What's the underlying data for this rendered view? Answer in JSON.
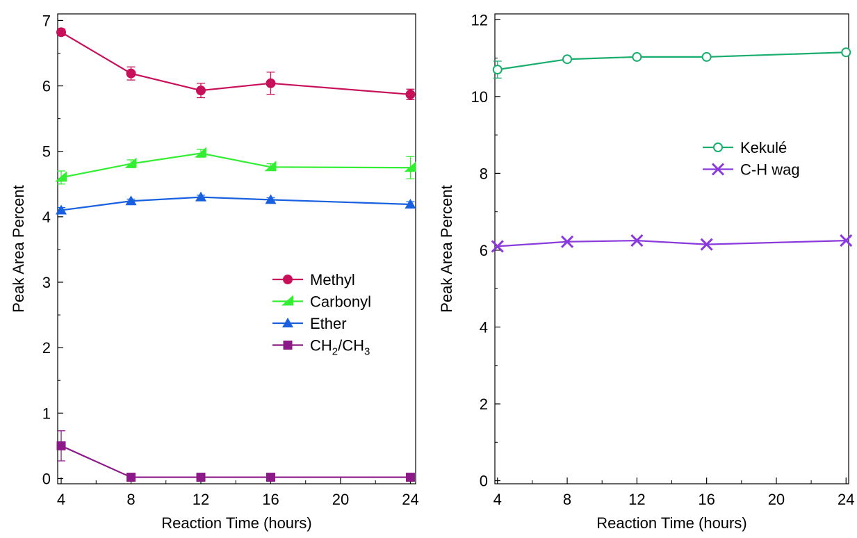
{
  "chart_data": [
    {
      "type": "line",
      "xlabel": "Reaction Time (hours)",
      "ylabel": "Peak Area Percent",
      "xlim": [
        3.8,
        24.3
      ],
      "ylim": [
        -0.08,
        7.1
      ],
      "x_ticks": [
        4,
        8,
        12,
        16,
        20,
        24
      ],
      "y_ticks": [
        0,
        1,
        2,
        3,
        4,
        5,
        6,
        7
      ],
      "grid": false,
      "legend_position": "center-right",
      "x": [
        4,
        8,
        12,
        16,
        24
      ],
      "series": [
        {
          "name": "Methyl",
          "marker": "circle",
          "color": "#C8105A",
          "values": [
            6.82,
            6.19,
            5.93,
            6.04,
            5.87
          ],
          "errors": [
            0.05,
            0.1,
            0.11,
            0.17,
            0.08
          ]
        },
        {
          "name": "Carbonyl",
          "marker": "triangle-left",
          "color": "#33EE33",
          "values": [
            4.6,
            4.81,
            4.97,
            4.76,
            4.75
          ],
          "errors": [
            0.1,
            0.06,
            0.06,
            0.05,
            0.17
          ]
        },
        {
          "name": "Ether",
          "marker": "triangle-up",
          "color": "#1860E0",
          "values": [
            4.1,
            4.24,
            4.3,
            4.26,
            4.19
          ],
          "errors": [
            0.04,
            0.03,
            0.03,
            0.03,
            0.04
          ]
        },
        {
          "name": "CH2/CH3",
          "name_parts": {
            "p1": "CH",
            "s1": "2",
            "p2": "/CH",
            "s2": "3"
          },
          "marker": "square",
          "color": "#8B1A88",
          "values": [
            0.5,
            0.02,
            0.02,
            0.02,
            0.02
          ],
          "errors": [
            0.23,
            0.0,
            0.0,
            0.0,
            0.0
          ]
        }
      ]
    },
    {
      "type": "line",
      "xlabel": "Reaction Time (hours)",
      "ylabel": "Peak Area Percent",
      "xlim": [
        3.85,
        24.15
      ],
      "ylim": [
        -0.08,
        12.15
      ],
      "x_ticks": [
        4,
        8,
        12,
        16,
        20,
        24
      ],
      "y_ticks": [
        0,
        2,
        4,
        6,
        8,
        10,
        12
      ],
      "grid": false,
      "legend_position": "center-right",
      "x": [
        4,
        8,
        12,
        16,
        24
      ],
      "series": [
        {
          "name": "Kekulé",
          "marker": "open-circle",
          "color": "#1AAE6E",
          "values": [
            10.7,
            10.97,
            11.03,
            11.03,
            11.15
          ],
          "errors": [
            0.22,
            0.05,
            0.05,
            0.05,
            0.05
          ]
        },
        {
          "name": "C-H wag",
          "marker": "x",
          "color": "#8A3ADC",
          "values": [
            6.1,
            6.22,
            6.25,
            6.15,
            6.25
          ],
          "errors": [
            0.0,
            0.0,
            0.0,
            0.0,
            0.0
          ]
        }
      ]
    }
  ]
}
